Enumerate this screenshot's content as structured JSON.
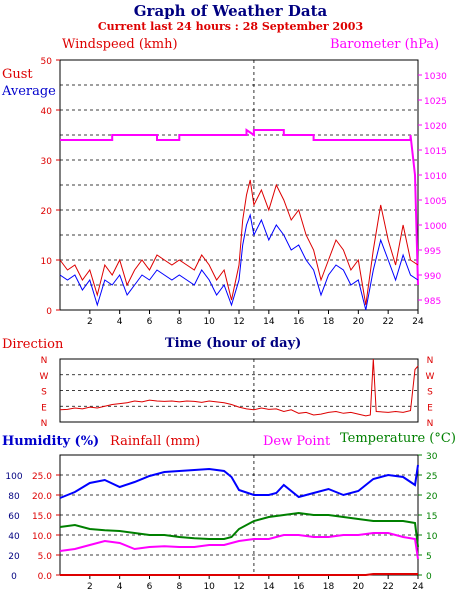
{
  "header": {
    "title": "Graph of Weather Data",
    "subtitle": "Current last 24 hours : 28 September 2003"
  },
  "colors": {
    "navy": "#000080",
    "blue": "#0000ff",
    "red": "#dd0000",
    "magenta": "#ff00ff",
    "green": "#008000"
  },
  "chart_data": [
    {
      "type": "line",
      "title": "",
      "xlabel": "Time (hour of day)",
      "left_axis_label": "Windspeed (kmh)",
      "right_axis_label": "Barometer (hPa)",
      "legend": [
        "Gust",
        "Average"
      ],
      "x_ticks": [
        2,
        4,
        6,
        8,
        10,
        12,
        14,
        16,
        18,
        20,
        22,
        24
      ],
      "xlim": [
        0,
        24
      ],
      "ylim_left": [
        0,
        50
      ],
      "ylim_right": [
        983,
        1033
      ],
      "left_ticks": [
        0,
        10,
        20,
        30,
        40,
        50
      ],
      "right_ticks": [
        985,
        990,
        995,
        1000,
        1005,
        1010,
        1015,
        1020,
        1025,
        1030
      ],
      "grid": true,
      "marker_hour": 13,
      "series": [
        {
          "name": "Gust",
          "axis": "left",
          "x": [
            0,
            0.5,
            1,
            1.5,
            2,
            2.5,
            3,
            3.5,
            4,
            4.5,
            5,
            5.5,
            6,
            6.5,
            7,
            7.5,
            8,
            8.5,
            9,
            9.5,
            10,
            10.5,
            11,
            11.5,
            12,
            12.25,
            12.5,
            12.75,
            13,
            13.5,
            14,
            14.5,
            15,
            15.5,
            16,
            16.5,
            17,
            17.5,
            18,
            18.5,
            19,
            19.5,
            20,
            20.5,
            21,
            21.5,
            22,
            22.5,
            23,
            23.5,
            24
          ],
          "y": [
            10,
            8,
            9,
            6,
            8,
            3,
            9,
            7,
            10,
            5,
            8,
            10,
            8,
            11,
            10,
            9,
            10,
            9,
            8,
            11,
            9,
            6,
            8,
            2,
            9,
            18,
            23,
            26,
            21,
            24,
            20,
            25,
            22,
            18,
            20,
            15,
            12,
            6,
            10,
            14,
            12,
            8,
            10,
            1,
            12,
            21,
            14,
            9,
            17,
            10,
            9
          ]
        },
        {
          "name": "Average",
          "axis": "left",
          "x": [
            0,
            0.5,
            1,
            1.5,
            2,
            2.5,
            3,
            3.5,
            4,
            4.5,
            5,
            5.5,
            6,
            6.5,
            7,
            7.5,
            8,
            8.5,
            9,
            9.5,
            10,
            10.5,
            11,
            11.5,
            12,
            12.25,
            12.5,
            12.75,
            13,
            13.5,
            14,
            14.5,
            15,
            15.5,
            16,
            16.5,
            17,
            17.5,
            18,
            18.5,
            19,
            19.5,
            20,
            20.5,
            21,
            21.5,
            22,
            22.5,
            23,
            23.5,
            24
          ],
          "y": [
            7,
            6,
            7,
            4,
            6,
            1,
            6,
            5,
            7,
            3,
            5,
            7,
            6,
            8,
            7,
            6,
            7,
            6,
            5,
            8,
            6,
            3,
            5,
            1,
            6,
            13,
            17,
            19,
            15,
            18,
            14,
            17,
            15,
            12,
            13,
            10,
            8,
            3,
            7,
            9,
            8,
            5,
            6,
            0,
            8,
            14,
            10,
            6,
            11,
            7,
            6
          ]
        },
        {
          "name": "Barometer",
          "axis": "right",
          "x": [
            0,
            3.5,
            3.5,
            6.5,
            6.5,
            8,
            8,
            12.5,
            12.5,
            13,
            13,
            15,
            15,
            17,
            17,
            23.5,
            23.5,
            23.8,
            24
          ],
          "y": [
            1017,
            1017,
            1018,
            1018,
            1017,
            1017,
            1018,
            1018,
            1019,
            1018,
            1019,
            1019,
            1018,
            1018,
            1017,
            1017,
            1018,
            1010,
            988
          ]
        }
      ]
    },
    {
      "type": "line",
      "ylabel": "Direction",
      "y_categories": [
        "N",
        "E",
        "S",
        "W",
        "N"
      ],
      "ylim": [
        0,
        360
      ],
      "xlim": [
        0,
        24
      ],
      "series": [
        {
          "name": "Direction",
          "x": [
            0,
            0.5,
            1,
            1.5,
            2,
            2.5,
            3,
            3.5,
            4,
            4.5,
            5,
            5.5,
            6,
            6.5,
            7,
            7.5,
            8,
            8.5,
            9,
            9.5,
            10,
            10.5,
            11,
            11.5,
            12,
            12.5,
            13,
            13.5,
            14,
            14.5,
            15,
            15.5,
            16,
            16.5,
            17,
            17.5,
            18,
            18.5,
            19,
            19.5,
            20,
            20.5,
            20.8,
            21,
            21.2,
            22,
            22.5,
            23,
            23.5,
            23.8,
            24
          ],
          "y": [
            70,
            72,
            80,
            75,
            85,
            80,
            90,
            100,
            105,
            110,
            120,
            115,
            125,
            120,
            118,
            120,
            115,
            120,
            118,
            112,
            120,
            115,
            110,
            100,
            85,
            75,
            70,
            80,
            72,
            75,
            60,
            70,
            50,
            55,
            40,
            45,
            55,
            60,
            50,
            55,
            45,
            35,
            40,
            360,
            60,
            55,
            60,
            55,
            65,
            300,
            320
          ]
        }
      ]
    },
    {
      "type": "line",
      "left_axis_label_1": "Humidity (%)",
      "left_axis_label_2": "Rainfall (mm)",
      "right_axis_label_1": "Dew Point",
      "right_axis_label_2": "Temperature (°C)",
      "humidity_ticks": [
        0,
        20,
        40,
        60,
        80,
        100
      ],
      "rainfall_ticks": [
        "0.0",
        "5.0",
        "10.0",
        "15.0",
        "20.0",
        "25.0"
      ],
      "temp_ticks": [
        0,
        5,
        10,
        15,
        20,
        25,
        30
      ],
      "ylim_humidity": [
        0,
        120
      ],
      "ylim_temp": [
        0,
        30
      ],
      "xlim": [
        0,
        24
      ],
      "series": [
        {
          "name": "Humidity",
          "axis": "humidity",
          "x": [
            0,
            1,
            2,
            3,
            4,
            5,
            6,
            7,
            8,
            9,
            10,
            11,
            11.5,
            12,
            13,
            14,
            14.5,
            15,
            16,
            17,
            18,
            19,
            20,
            21,
            22,
            23,
            23.8,
            24
          ],
          "y": [
            77,
            83,
            92,
            95,
            88,
            93,
            99,
            103,
            104,
            105,
            106,
            104,
            98,
            85,
            80,
            80,
            82,
            90,
            78,
            82,
            86,
            80,
            84,
            96,
            100,
            98,
            90,
            110
          ]
        },
        {
          "name": "Temperature",
          "axis": "temp",
          "x": [
            0,
            1,
            2,
            3,
            4,
            5,
            6,
            7,
            8,
            9,
            10,
            11,
            11.5,
            12,
            13,
            14,
            15,
            16,
            17,
            18,
            19,
            20,
            21,
            22,
            23,
            23.8,
            24
          ],
          "y": [
            12,
            12.5,
            11.5,
            11.2,
            11,
            10.5,
            10,
            10,
            9.5,
            9.2,
            9,
            9,
            9.5,
            11.5,
            13.5,
            14.5,
            15,
            15.5,
            15,
            15,
            14.5,
            14,
            13.5,
            13.5,
            13.5,
            13,
            7
          ]
        },
        {
          "name": "Dew Point",
          "axis": "temp",
          "x": [
            0,
            1,
            2,
            3,
            4,
            5,
            6,
            7,
            8,
            9,
            10,
            11,
            11.5,
            12,
            13,
            14,
            15,
            16,
            17,
            18,
            19,
            20,
            21,
            22,
            23,
            23.8,
            24
          ],
          "y": [
            6,
            6.5,
            7.5,
            8.5,
            8,
            6.5,
            7,
            7.2,
            7,
            7,
            7.5,
            7.5,
            8,
            8.5,
            9,
            9,
            10,
            10,
            9.5,
            9.5,
            10,
            10,
            10.5,
            10.5,
            9.5,
            9,
            4
          ]
        },
        {
          "name": "Rainfall",
          "axis": "humidity",
          "x": [
            0,
            20.5,
            21,
            24
          ],
          "y": [
            0,
            0,
            1,
            1
          ]
        }
      ]
    }
  ]
}
